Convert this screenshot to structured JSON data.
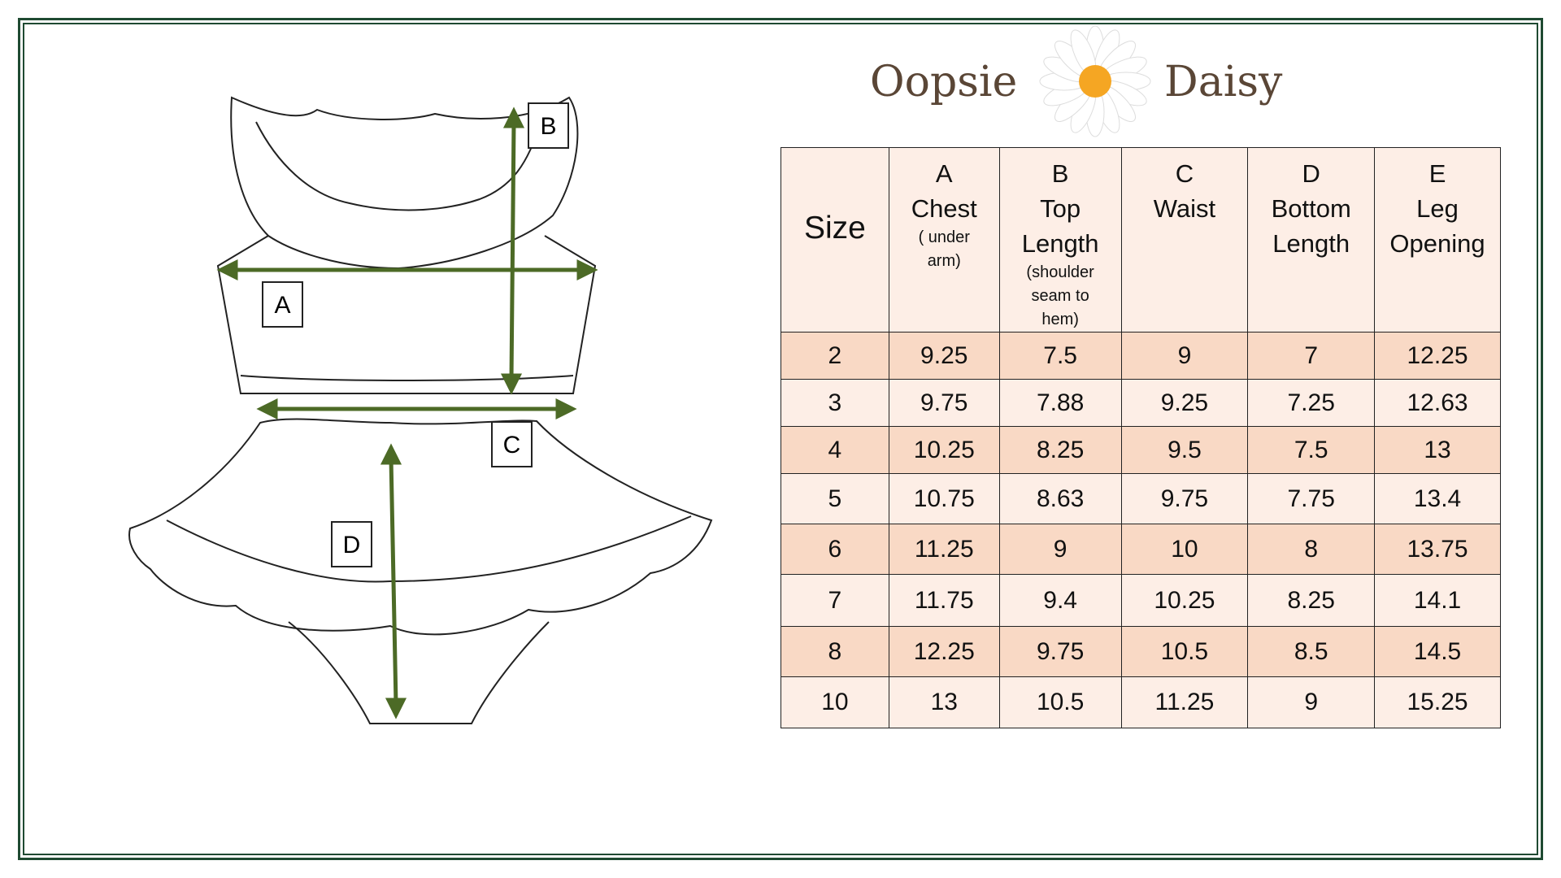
{
  "logo": {
    "left": "Oopsie",
    "right": "Daisy"
  },
  "diagram": {
    "labels": [
      "A",
      "B",
      "C",
      "D"
    ]
  },
  "table": {
    "header": [
      {
        "lines": [
          "Size"
        ]
      },
      {
        "lines": [
          "A",
          "Chest"
        ],
        "note": "( under arm)"
      },
      {
        "lines": [
          "B",
          "Top",
          "Length"
        ],
        "note": "(shoulder seam to hem)"
      },
      {
        "lines": [
          "C",
          "Waist"
        ]
      },
      {
        "lines": [
          "D",
          "Bottom",
          "Length"
        ]
      },
      {
        "lines": [
          "E",
          "Leg",
          "Opening"
        ]
      }
    ],
    "rows": [
      [
        "2",
        "9.25",
        "7.5",
        "9",
        "7",
        "12.25"
      ],
      [
        "3",
        "9.75",
        "7.88",
        "9.25",
        "7.25",
        "12.63"
      ],
      [
        "4",
        "10.25",
        "8.25",
        "9.5",
        "7.5",
        "13"
      ],
      [
        "5",
        "10.75",
        "8.63",
        "9.75",
        "7.75",
        "13.4"
      ],
      [
        "6",
        "11.25",
        "9",
        "10",
        "8",
        "13.75"
      ],
      [
        "7",
        "11.75",
        "9.4",
        "10.25",
        "8.25",
        "14.1"
      ],
      [
        "8",
        "12.25",
        "9.75",
        "10.5",
        "8.5",
        "14.5"
      ],
      [
        "10",
        "13",
        "10.5",
        "11.25",
        "9",
        "15.25"
      ]
    ]
  }
}
